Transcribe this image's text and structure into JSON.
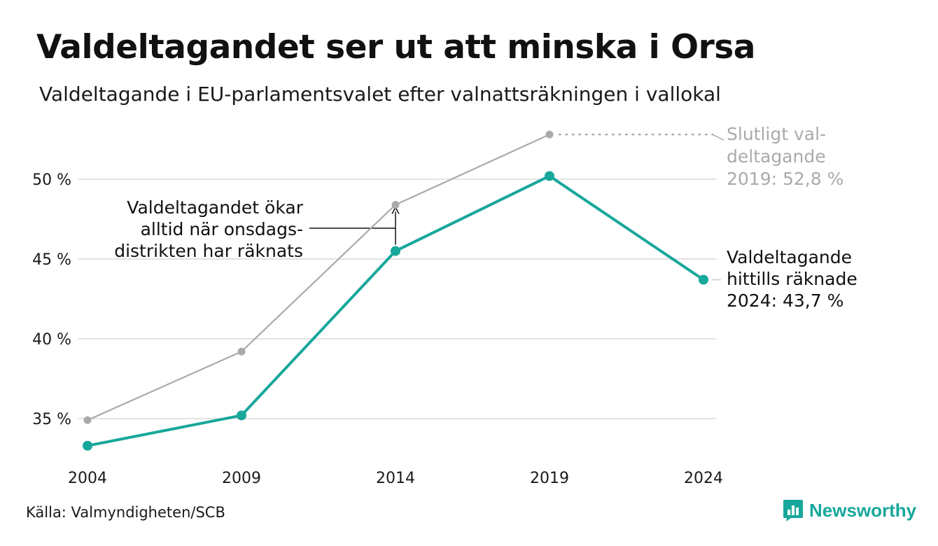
{
  "title": "Valdeltagandet ser ut att minska i Orsa",
  "subtitle": "Valdeltagande i EU-parlamentsvalet efter valnattsräkningen i vallokal",
  "source": "Källa: Valmyndigheten/SCB",
  "brand": {
    "name": "Newsworthy",
    "icon": "newsworthy-logo-icon"
  },
  "colors": {
    "accent": "#17a79b",
    "final": "#aaaaaa",
    "grid": "#e3e3e3",
    "text": "#1a1a1a"
  },
  "chart_data": {
    "type": "line",
    "x": [
      2004,
      2009,
      2014,
      2019,
      2024
    ],
    "xticks": [
      "2004",
      "2009",
      "2014",
      "2019",
      "2024"
    ],
    "yticks": [
      35,
      40,
      45,
      50
    ],
    "ytick_labels": [
      "35 %",
      "40 %",
      "45 %",
      "50 %"
    ],
    "ylim": [
      32.5,
      53.5
    ],
    "grid": true,
    "series": [
      {
        "key": "final",
        "color": "#aaaaaa",
        "values": [
          34.9,
          39.2,
          48.4,
          52.8,
          null
        ]
      },
      {
        "key": "counted",
        "color": "#17a79b",
        "values": [
          33.3,
          35.2,
          45.5,
          50.2,
          43.7
        ]
      }
    ],
    "annotations": {
      "final_label": [
        "Slutligt val-",
        "deltagande",
        "2019: 52,8 %"
      ],
      "counted_label": [
        "Valdeltagande",
        "hittills räknade",
        "2024: 43,7 %"
      ],
      "note": [
        "Valdeltagandet ökar",
        "alltid när onsdags-",
        "distrikten har räknats"
      ]
    }
  }
}
